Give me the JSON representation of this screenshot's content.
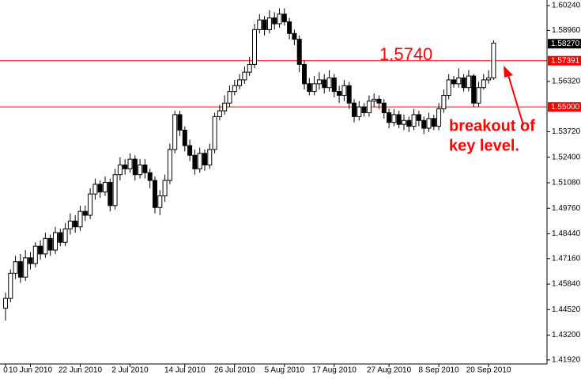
{
  "chart_data": {
    "type": "candlestick",
    "categories": [
      "0",
      null,
      null,
      null,
      null,
      "10 Jun 2010",
      null,
      null,
      null,
      null,
      null,
      null,
      null,
      null,
      null,
      "22 Jun 2010",
      null,
      null,
      null,
      null,
      null,
      null,
      null,
      null,
      null,
      "2 Jul 2010",
      null,
      null,
      null,
      null,
      null,
      null,
      null,
      null,
      null,
      null,
      "14 Jul 2010",
      null,
      null,
      null,
      null,
      null,
      null,
      null,
      null,
      null,
      "26 Jul 2010",
      null,
      null,
      null,
      null,
      null,
      null,
      null,
      null,
      null,
      "5 Aug 2010",
      null,
      null,
      null,
      null,
      null,
      null,
      null,
      null,
      null,
      "17 Aug 2010",
      null,
      null,
      null,
      null,
      null,
      null,
      null,
      null,
      null,
      null,
      "27 Aug 2010",
      null,
      null,
      null,
      null,
      null,
      null,
      null,
      null,
      null,
      "8 Sep 2010",
      null,
      null,
      null,
      null,
      null,
      null,
      null,
      null,
      null,
      "20 Sep 2010",
      null
    ],
    "open": [
      1.446,
      1.451,
      1.464,
      1.47,
      1.462,
      1.472,
      1.469,
      1.478,
      1.474,
      1.482,
      1.476,
      1.485,
      1.48,
      1.487,
      1.491,
      1.488,
      1.496,
      1.494,
      1.505,
      1.51,
      1.506,
      1.511,
      1.499,
      1.515,
      1.52,
      1.518,
      1.523,
      1.515,
      1.52,
      1.516,
      1.512,
      1.498,
      1.504,
      1.512,
      1.528,
      1.546,
      1.538,
      1.53,
      1.525,
      1.518,
      1.526,
      1.52,
      1.528,
      1.545,
      1.548,
      1.552,
      1.558,
      1.561,
      1.564,
      1.568,
      1.572,
      1.59,
      1.595,
      1.59,
      1.596,
      1.593,
      1.598,
      1.594,
      1.588,
      1.585,
      1.572,
      1.562,
      1.558,
      1.562,
      1.564,
      1.56,
      1.565,
      1.558,
      1.556,
      1.561,
      1.552,
      1.545,
      1.55,
      1.547,
      1.553,
      1.554,
      1.552,
      1.547,
      1.542,
      1.546,
      1.541,
      1.543,
      1.54,
      1.546,
      1.543,
      1.539,
      1.544,
      1.54,
      1.549,
      1.556,
      1.564,
      1.562,
      1.565,
      1.56,
      1.566,
      1.552,
      1.56,
      1.564,
      1.565
    ],
    "high": [
      1.454,
      1.466,
      1.473,
      1.474,
      1.476,
      1.475,
      1.48,
      1.481,
      1.485,
      1.484,
      1.488,
      1.487,
      1.49,
      1.495,
      1.494,
      1.499,
      1.499,
      1.508,
      1.513,
      1.512,
      1.514,
      1.513,
      1.518,
      1.524,
      1.523,
      1.526,
      1.525,
      1.523,
      1.523,
      1.518,
      1.514,
      1.507,
      1.515,
      1.531,
      1.548,
      1.548,
      1.54,
      1.533,
      1.528,
      1.529,
      1.528,
      1.531,
      1.547,
      1.551,
      1.556,
      1.561,
      1.564,
      1.567,
      1.571,
      1.576,
      1.593,
      1.598,
      1.597,
      1.6,
      1.599,
      1.601,
      1.601,
      1.596,
      1.59,
      1.587,
      1.574,
      1.565,
      1.566,
      1.568,
      1.567,
      1.569,
      1.567,
      1.561,
      1.564,
      1.563,
      1.554,
      1.553,
      1.552,
      1.556,
      1.557,
      1.556,
      1.554,
      1.549,
      1.549,
      1.548,
      1.546,
      1.545,
      1.549,
      1.548,
      1.545,
      1.547,
      1.546,
      1.552,
      1.559,
      1.567,
      1.566,
      1.57,
      1.567,
      1.569,
      1.567,
      1.563,
      1.567,
      1.569,
      1.5845
    ],
    "low": [
      1.4395,
      1.449,
      1.461,
      1.459,
      1.46,
      1.466,
      1.467,
      1.471,
      1.472,
      1.473,
      1.474,
      1.478,
      1.478,
      1.484,
      1.485,
      1.486,
      1.491,
      1.492,
      1.502,
      1.503,
      1.504,
      1.496,
      1.497,
      1.512,
      1.515,
      1.516,
      1.512,
      1.513,
      1.513,
      1.508,
      1.495,
      1.494,
      1.501,
      1.51,
      1.526,
      1.535,
      1.527,
      1.522,
      1.515,
      1.516,
      1.517,
      1.518,
      1.526,
      1.543,
      1.546,
      1.55,
      1.556,
      1.559,
      1.562,
      1.566,
      1.57,
      1.588,
      1.587,
      1.588,
      1.59,
      1.591,
      1.592,
      1.585,
      1.582,
      1.568,
      1.559,
      1.556,
      1.556,
      1.559,
      1.557,
      1.558,
      1.555,
      1.552,
      1.553,
      1.549,
      1.542,
      1.543,
      1.545,
      1.545,
      1.55,
      1.549,
      1.544,
      1.539,
      1.54,
      1.539,
      1.538,
      1.537,
      1.538,
      1.54,
      1.536,
      1.537,
      1.538,
      1.538,
      1.547,
      1.554,
      1.56,
      1.56,
      1.558,
      1.558,
      1.55,
      1.55,
      1.559,
      1.562,
      1.564
    ],
    "close": [
      1.451,
      1.464,
      1.47,
      1.462,
      1.472,
      1.469,
      1.478,
      1.474,
      1.482,
      1.476,
      1.485,
      1.48,
      1.487,
      1.491,
      1.488,
      1.496,
      1.494,
      1.505,
      1.51,
      1.506,
      1.511,
      1.499,
      1.515,
      1.52,
      1.518,
      1.523,
      1.515,
      1.52,
      1.516,
      1.512,
      1.498,
      1.504,
      1.512,
      1.528,
      1.546,
      1.538,
      1.53,
      1.525,
      1.518,
      1.526,
      1.52,
      1.528,
      1.545,
      1.548,
      1.552,
      1.558,
      1.561,
      1.564,
      1.568,
      1.572,
      1.59,
      1.595,
      1.59,
      1.596,
      1.593,
      1.598,
      1.594,
      1.588,
      1.585,
      1.572,
      1.562,
      1.558,
      1.562,
      1.564,
      1.56,
      1.565,
      1.558,
      1.556,
      1.561,
      1.552,
      1.545,
      1.55,
      1.547,
      1.553,
      1.554,
      1.552,
      1.547,
      1.542,
      1.546,
      1.541,
      1.543,
      1.54,
      1.546,
      1.543,
      1.539,
      1.544,
      1.54,
      1.549,
      1.556,
      1.564,
      1.562,
      1.565,
      1.56,
      1.566,
      1.552,
      1.56,
      1.564,
      1.565,
      1.583
    ],
    "ylim": [
      1.4171,
      1.6053
    ],
    "yticks": [
      {
        "value": 1.6024,
        "label": "1.60240"
      },
      {
        "value": 1.5896,
        "label": "1.58960"
      },
      {
        "value": 1.5632,
        "label": "1.56320"
      },
      {
        "value": 1.5372,
        "label": "1.53720"
      },
      {
        "value": 1.524,
        "label": "1.52400"
      },
      {
        "value": 1.5108,
        "label": "1.51080"
      },
      {
        "value": 1.4976,
        "label": "1.49760"
      },
      {
        "value": 1.4844,
        "label": "1.48440"
      },
      {
        "value": 1.4716,
        "label": "1.47160"
      },
      {
        "value": 1.4584,
        "label": "1.45840"
      },
      {
        "value": 1.4452,
        "label": "1.44520"
      },
      {
        "value": 1.432,
        "label": "1.43200"
      },
      {
        "value": 1.4192,
        "label": "1.41920"
      }
    ],
    "levels": [
      {
        "value": 1.57391,
        "label": "1.57391"
      },
      {
        "value": 1.55,
        "label": "1.55000"
      }
    ],
    "level_color": "#ff0000",
    "current_price": {
      "value": 1.5827,
      "label": "1.58270"
    },
    "annotations": [
      "1.5740",
      "breakout of",
      "key level."
    ]
  }
}
